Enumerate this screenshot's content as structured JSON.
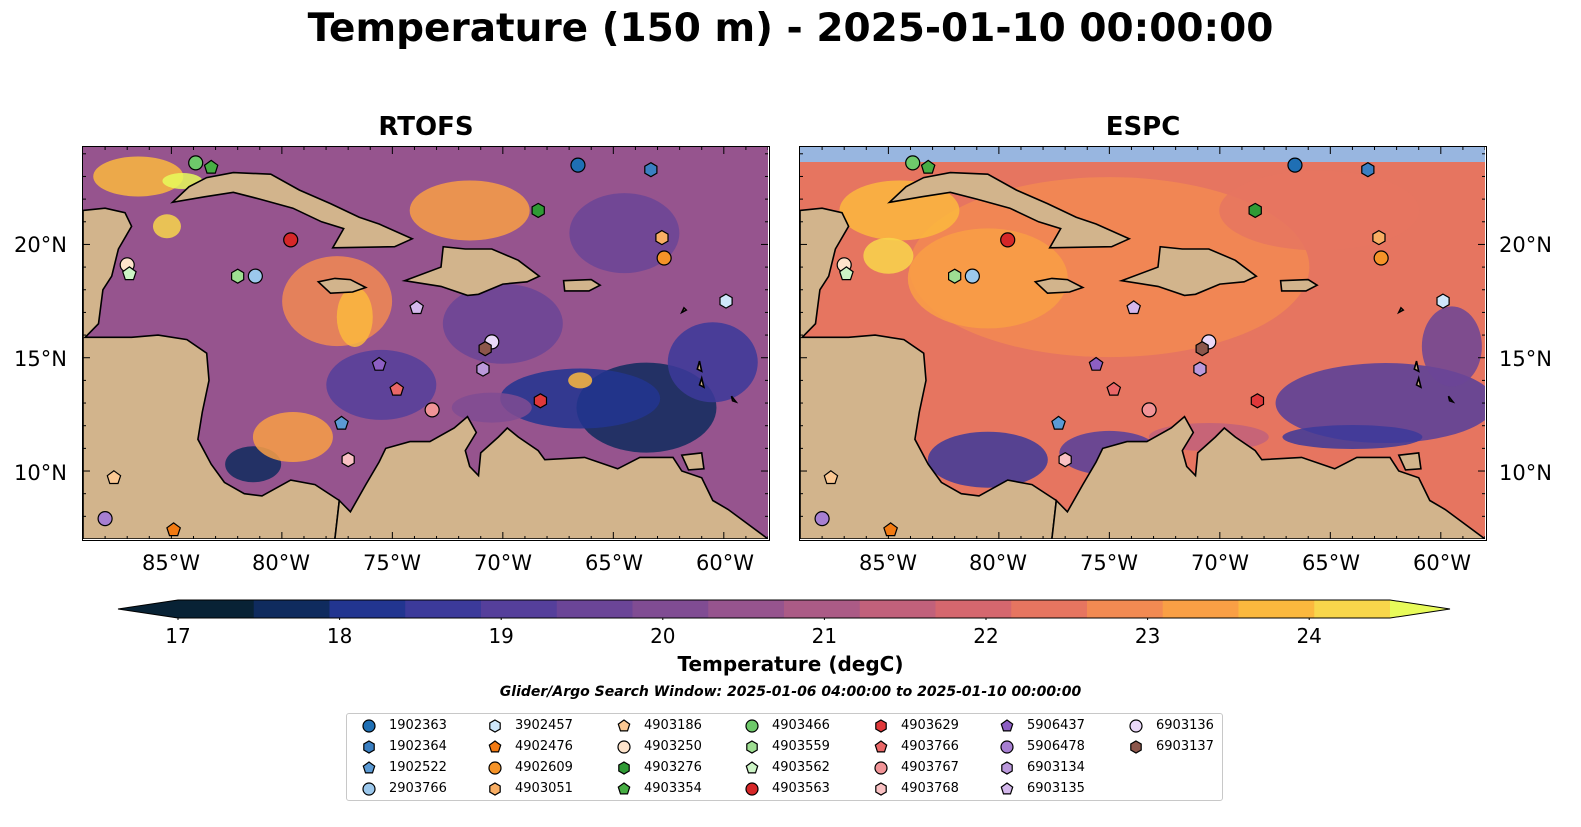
{
  "title": "Temperature (150 m) - 2025-01-10 00:00:00",
  "panels": [
    {
      "name": "RTOFS",
      "id": "rtofs"
    },
    {
      "name": "ESPC",
      "id": "espc"
    }
  ],
  "map_extent": {
    "lon": [
      -89.0,
      -58.0
    ],
    "lat": [
      7.0,
      24.3
    ]
  },
  "lon_ticks": [
    "85°W",
    "80°W",
    "75°W",
    "70°W",
    "65°W",
    "60°W"
  ],
  "lat_ticks": [
    "20°N",
    "15°N",
    "10°N"
  ],
  "colors": {
    "land": "#d2b48c",
    "ocean": "#98b6e0",
    "coast": "#000000"
  },
  "colorbar": {
    "label": "Temperature (degC)",
    "ticks": [
      "17",
      "18",
      "19",
      "20",
      "21",
      "22",
      "23",
      "24"
    ],
    "range": [
      17,
      24.5
    ],
    "colors": [
      "#082235",
      "#0f2b5e",
      "#223590",
      "#3c3a9a",
      "#553f9b",
      "#6b4597",
      "#804c93",
      "#96548e",
      "#ab5b86",
      "#c1617b",
      "#d5676e",
      "#e67560",
      "#f28a52",
      "#f99f45",
      "#fbb83e",
      "#f8d64b"
    ],
    "extend_low": "#082235",
    "extend_high": "#e8fb5a"
  },
  "search_window": "Glider/Argo Search Window: 2025-01-06 04:00:00 to 2025-01-10 00:00:00",
  "legend": [
    {
      "id": "1902363",
      "marker": "circle",
      "color": "#1f6fb4"
    },
    {
      "id": "1902364",
      "marker": "hexagon",
      "color": "#3a7fc2"
    },
    {
      "id": "1902522",
      "marker": "pentagon",
      "color": "#5b9ad4"
    },
    {
      "id": "2903766",
      "marker": "circle",
      "color": "#9cc8ec"
    },
    {
      "id": "3902457",
      "marker": "hexagon",
      "color": "#cfe7fb"
    },
    {
      "id": "4902476",
      "marker": "pentagon",
      "color": "#f27a12"
    },
    {
      "id": "4902609",
      "marker": "circle",
      "color": "#f59328"
    },
    {
      "id": "4903051",
      "marker": "hexagon",
      "color": "#f8ae64"
    },
    {
      "id": "4903186",
      "marker": "pentagon",
      "color": "#fbc893"
    },
    {
      "id": "4903250",
      "marker": "circle",
      "color": "#fde3cb"
    },
    {
      "id": "4903276",
      "marker": "hexagon",
      "color": "#2f9a35"
    },
    {
      "id": "4903354",
      "marker": "pentagon",
      "color": "#47ae44"
    },
    {
      "id": "4903466",
      "marker": "circle",
      "color": "#6ec96a"
    },
    {
      "id": "4903559",
      "marker": "hexagon",
      "color": "#9ede92"
    },
    {
      "id": "4903562",
      "marker": "pentagon",
      "color": "#cdf5c6"
    },
    {
      "id": "4903563",
      "marker": "circle",
      "color": "#d62728"
    },
    {
      "id": "4903629",
      "marker": "hexagon",
      "color": "#e0383a"
    },
    {
      "id": "4903766",
      "marker": "pentagon",
      "color": "#ea6767"
    },
    {
      "id": "4903767",
      "marker": "circle",
      "color": "#f19497"
    },
    {
      "id": "4903768",
      "marker": "hexagon",
      "color": "#f9c1c3"
    },
    {
      "id": "5906437",
      "marker": "pentagon",
      "color": "#8d5fc4"
    },
    {
      "id": "5906478",
      "marker": "circle",
      "color": "#a77fd2"
    },
    {
      "id": "6903134",
      "marker": "hexagon",
      "color": "#bb99dc"
    },
    {
      "id": "6903135",
      "marker": "pentagon",
      "color": "#d4b8ec"
    },
    {
      "id": "6903136",
      "marker": "circle",
      "color": "#ead8f8"
    },
    {
      "id": "6903137",
      "marker": "hexagon",
      "color": "#8c564b"
    }
  ],
  "floats": [
    {
      "id": "4903466",
      "lon": -83.9,
      "lat": 23.6
    },
    {
      "id": "4903354",
      "lon": -83.2,
      "lat": 23.4
    },
    {
      "id": "1902363",
      "lon": -66.6,
      "lat": 23.5
    },
    {
      "id": "1902364",
      "lon": -63.3,
      "lat": 23.3
    },
    {
      "id": "4903276",
      "lon": -68.4,
      "lat": 21.5
    },
    {
      "id": "4903563",
      "lon": -79.6,
      "lat": 20.2
    },
    {
      "id": "4903051",
      "lon": -62.8,
      "lat": 20.3
    },
    {
      "id": "4902609",
      "lon": -62.7,
      "lat": 19.4
    },
    {
      "id": "4903250",
      "lon": -87.0,
      "lat": 19.1
    },
    {
      "id": "4903562",
      "lon": -86.9,
      "lat": 18.7
    },
    {
      "id": "4903559",
      "lon": -82.0,
      "lat": 18.6
    },
    {
      "id": "2903766",
      "lon": -81.2,
      "lat": 18.6
    },
    {
      "id": "3902457",
      "lon": -59.9,
      "lat": 17.5
    },
    {
      "id": "6903135",
      "lon": -73.9,
      "lat": 17.2
    },
    {
      "id": "6903136",
      "lon": -70.5,
      "lat": 15.7
    },
    {
      "id": "6903137",
      "lon": -70.8,
      "lat": 15.4
    },
    {
      "id": "5906437",
      "lon": -75.6,
      "lat": 14.7
    },
    {
      "id": "6903134",
      "lon": -70.9,
      "lat": 14.5
    },
    {
      "id": "4903766",
      "lon": -74.8,
      "lat": 13.6
    },
    {
      "id": "4903629",
      "lon": -68.3,
      "lat": 13.1
    },
    {
      "id": "4903767",
      "lon": -73.2,
      "lat": 12.7
    },
    {
      "id": "1902522",
      "lon": -77.3,
      "lat": 12.1
    },
    {
      "id": "4903768",
      "lon": -77.0,
      "lat": 10.5
    },
    {
      "id": "4903186",
      "lon": -87.6,
      "lat": 9.7
    },
    {
      "id": "5906478",
      "lon": -88.0,
      "lat": 7.9
    },
    {
      "id": "4902476",
      "lon": -84.9,
      "lat": 7.4
    }
  ]
}
